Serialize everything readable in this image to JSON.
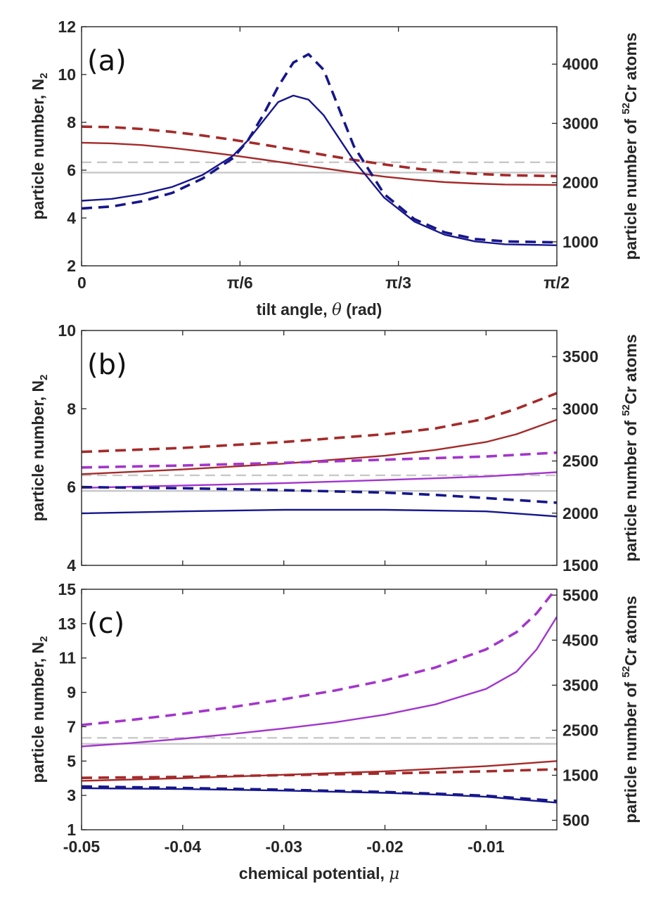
{
  "chart_data": [
    {
      "type": "line",
      "panel_label": "(a)",
      "xlabel": "tilt angle, θ (rad)",
      "ylabel": "particle number, N",
      "ylabel_sub": "2",
      "ylabel_right_prefix": "particle number of ",
      "ylabel_right_sup": "52",
      "ylabel_right_suffix": "Cr atoms",
      "xlim": [
        0,
        1.5708
      ],
      "ylim": [
        2,
        12
      ],
      "y2lim": [
        595,
        4632
      ],
      "x_ticks": [
        0,
        0.5236,
        1.0472,
        1.5708
      ],
      "x_tick_labels": [
        "0",
        "π/6",
        "π/3",
        "π/2"
      ],
      "y_ticks": [
        "2",
        "4",
        "6",
        "8",
        "10",
        "12"
      ],
      "y2_ticks": [
        "1000",
        "2000",
        "3000",
        "4000"
      ],
      "reference_lines": [
        {
          "y": 5.9,
          "style": "solid",
          "color": "#c8c8c8"
        },
        {
          "y": 6.33,
          "style": "dashed",
          "color": "#c8c8c8"
        }
      ],
      "series": [
        {
          "name": "red solid",
          "color": "#a52a2a",
          "style": "solid",
          "x": [
            0,
            0.1,
            0.2,
            0.3,
            0.4,
            0.5,
            0.6,
            0.7,
            0.8,
            0.9,
            1.0,
            1.1,
            1.2,
            1.3,
            1.4,
            1.5708
          ],
          "y": [
            7.15,
            7.12,
            7.05,
            6.93,
            6.78,
            6.62,
            6.44,
            6.26,
            6.08,
            5.9,
            5.73,
            5.6,
            5.5,
            5.44,
            5.4,
            5.38
          ]
        },
        {
          "name": "red dashed",
          "color": "#a52a2a",
          "style": "dashed",
          "x": [
            0,
            0.1,
            0.2,
            0.3,
            0.4,
            0.5,
            0.6,
            0.7,
            0.8,
            0.9,
            1.0,
            1.1,
            1.2,
            1.3,
            1.4,
            1.5708
          ],
          "y": [
            7.82,
            7.8,
            7.72,
            7.6,
            7.45,
            7.27,
            7.07,
            6.86,
            6.64,
            6.43,
            6.24,
            6.07,
            5.94,
            5.85,
            5.79,
            5.75
          ]
        },
        {
          "name": "blue solid",
          "color": "#16168c",
          "style": "solid",
          "x": [
            0,
            0.1,
            0.2,
            0.3,
            0.4,
            0.5,
            0.55,
            0.6,
            0.65,
            0.7,
            0.75,
            0.8,
            0.85,
            0.9,
            1.0,
            1.1,
            1.2,
            1.3,
            1.4,
            1.5708
          ],
          "y": [
            4.72,
            4.8,
            5.0,
            5.3,
            5.8,
            6.6,
            7.25,
            8.05,
            8.85,
            9.12,
            8.95,
            8.3,
            7.35,
            6.4,
            4.85,
            3.85,
            3.3,
            3.02,
            2.9,
            2.86
          ]
        },
        {
          "name": "blue dashed",
          "color": "#16168c",
          "style": "dashed",
          "x": [
            0,
            0.1,
            0.2,
            0.3,
            0.4,
            0.5,
            0.55,
            0.6,
            0.65,
            0.7,
            0.75,
            0.8,
            0.85,
            0.9,
            1.0,
            1.1,
            1.2,
            1.3,
            1.4,
            1.5708
          ],
          "y": [
            4.4,
            4.48,
            4.7,
            5.05,
            5.65,
            6.5,
            7.25,
            8.3,
            9.5,
            10.5,
            10.85,
            10.2,
            8.6,
            7.0,
            5.0,
            3.95,
            3.4,
            3.12,
            3.02,
            2.98
          ]
        }
      ]
    },
    {
      "type": "line",
      "panel_label": "(b)",
      "xlabel": "",
      "ylabel": "particle number, N",
      "ylabel_sub": "2",
      "ylabel_right_prefix": "particle number of ",
      "ylabel_right_sup": "52",
      "ylabel_right_suffix": "Cr atoms",
      "xlim": [
        -0.05,
        -0.003
      ],
      "ylim": [
        4,
        10
      ],
      "y2lim": [
        1500,
        3750
      ],
      "x_ticks": [
        -0.05,
        -0.04,
        -0.03,
        -0.02,
        -0.01
      ],
      "x_tick_labels": [],
      "y_ticks": [
        "4",
        "6",
        "8",
        "10"
      ],
      "y2_ticks": [
        "1500",
        "2000",
        "2500",
        "3000",
        "3500"
      ],
      "reference_lines": [
        {
          "y": 5.9,
          "style": "solid",
          "color": "#c8c8c8"
        },
        {
          "y": 6.3,
          "style": "dashed",
          "color": "#c8c8c8"
        }
      ],
      "series": [
        {
          "name": "red dashed",
          "color": "#a52a2a",
          "style": "dashed",
          "x": [
            -0.05,
            -0.04,
            -0.03,
            -0.02,
            -0.015,
            -0.01,
            -0.007,
            -0.003
          ],
          "y": [
            6.9,
            7.0,
            7.15,
            7.35,
            7.5,
            7.75,
            8.0,
            8.4
          ]
        },
        {
          "name": "red solid",
          "color": "#a52a2a",
          "style": "solid",
          "x": [
            -0.05,
            -0.04,
            -0.03,
            -0.02,
            -0.015,
            -0.01,
            -0.007,
            -0.003
          ],
          "y": [
            6.33,
            6.45,
            6.6,
            6.8,
            6.95,
            7.15,
            7.35,
            7.72
          ]
        },
        {
          "name": "purple dashed",
          "color": "#a335cc",
          "style": "dashed",
          "x": [
            -0.05,
            -0.04,
            -0.03,
            -0.02,
            -0.01,
            -0.003
          ],
          "y": [
            6.5,
            6.55,
            6.62,
            6.7,
            6.78,
            6.88
          ]
        },
        {
          "name": "purple solid",
          "color": "#a335cc",
          "style": "solid",
          "x": [
            -0.05,
            -0.04,
            -0.03,
            -0.02,
            -0.01,
            -0.003
          ],
          "y": [
            5.98,
            6.04,
            6.1,
            6.18,
            6.27,
            6.38
          ]
        },
        {
          "name": "blue dashed",
          "color": "#16168c",
          "style": "dashed",
          "x": [
            -0.05,
            -0.04,
            -0.03,
            -0.02,
            -0.015,
            -0.01,
            -0.003
          ],
          "y": [
            6.0,
            5.97,
            5.92,
            5.86,
            5.8,
            5.72,
            5.6
          ]
        },
        {
          "name": "blue solid",
          "color": "#16168c",
          "style": "solid",
          "x": [
            -0.05,
            -0.04,
            -0.03,
            -0.02,
            -0.01,
            -0.003
          ],
          "y": [
            5.33,
            5.38,
            5.42,
            5.42,
            5.38,
            5.25
          ]
        }
      ]
    },
    {
      "type": "line",
      "panel_label": "(c)",
      "xlabel": "chemical potential, μ",
      "ylabel": "particle number, N",
      "ylabel_sub": "2",
      "ylabel_right_prefix": "particle number of ",
      "ylabel_right_sup": "52",
      "ylabel_right_suffix": "Cr atoms",
      "xlim": [
        -0.05,
        -0.003
      ],
      "ylim": [
        1,
        15
      ],
      "y2lim": [
        290,
        5630
      ],
      "x_ticks": [
        -0.05,
        -0.04,
        -0.03,
        -0.02,
        -0.01
      ],
      "x_tick_labels": [
        "-0.05",
        "-0.04",
        "-0.03",
        "-0.02",
        "-0.01"
      ],
      "y_ticks": [
        "1",
        "3",
        "5",
        "7",
        "9",
        "11",
        "13",
        "15"
      ],
      "y2_ticks": [
        "500",
        "1500",
        "2500",
        "3500",
        "4500",
        "5500"
      ],
      "reference_lines": [
        {
          "y": 6.0,
          "style": "solid",
          "color": "#c8c8c8"
        },
        {
          "y": 6.35,
          "style": "dashed",
          "color": "#c8c8c8"
        }
      ],
      "series": [
        {
          "name": "purple dashed",
          "color": "#a335cc",
          "style": "dashed",
          "x": [
            -0.05,
            -0.045,
            -0.04,
            -0.035,
            -0.03,
            -0.025,
            -0.02,
            -0.015,
            -0.01,
            -0.007,
            -0.005,
            -0.003
          ],
          "y": [
            7.1,
            7.4,
            7.75,
            8.15,
            8.6,
            9.1,
            9.7,
            10.45,
            11.5,
            12.5,
            13.6,
            15.1
          ]
        },
        {
          "name": "purple solid",
          "color": "#a335cc",
          "style": "solid",
          "x": [
            -0.05,
            -0.045,
            -0.04,
            -0.035,
            -0.03,
            -0.025,
            -0.02,
            -0.015,
            -0.01,
            -0.007,
            -0.005,
            -0.003
          ],
          "y": [
            5.85,
            6.05,
            6.3,
            6.58,
            6.9,
            7.25,
            7.7,
            8.3,
            9.2,
            10.2,
            11.5,
            13.4
          ]
        },
        {
          "name": "red solid",
          "color": "#a52a2a",
          "style": "solid",
          "x": [
            -0.05,
            -0.04,
            -0.03,
            -0.02,
            -0.01,
            -0.003
          ],
          "y": [
            3.85,
            4.0,
            4.2,
            4.4,
            4.7,
            5.0
          ]
        },
        {
          "name": "red dashed",
          "color": "#a52a2a",
          "style": "dashed",
          "x": [
            -0.05,
            -0.04,
            -0.03,
            -0.02,
            -0.01,
            -0.003
          ],
          "y": [
            4.02,
            4.08,
            4.18,
            4.28,
            4.4,
            4.52
          ]
        },
        {
          "name": "blue dashed",
          "color": "#16168c",
          "style": "dashed",
          "x": [
            -0.05,
            -0.04,
            -0.03,
            -0.02,
            -0.015,
            -0.01,
            -0.003
          ],
          "y": [
            3.52,
            3.43,
            3.33,
            3.2,
            3.1,
            2.98,
            2.68
          ]
        },
        {
          "name": "blue solid",
          "color": "#16168c",
          "style": "solid",
          "x": [
            -0.05,
            -0.04,
            -0.03,
            -0.02,
            -0.015,
            -0.01,
            -0.003
          ],
          "y": [
            3.42,
            3.37,
            3.28,
            3.15,
            3.05,
            2.92,
            2.58
          ]
        }
      ]
    }
  ]
}
